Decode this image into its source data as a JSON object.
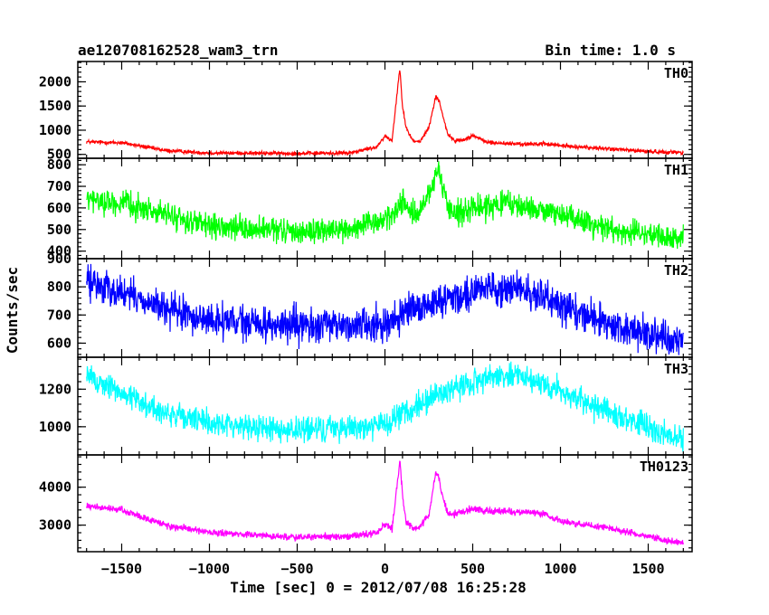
{
  "header": {
    "left_title": "ae120708162528_wam3_trn",
    "right_title": "Bin time: 1.0 s"
  },
  "chart_data": {
    "type": "line",
    "title": "ae120708162528_wam3_trn",
    "subtitle": "Bin time: 1.0 s",
    "xlabel": "Time [sec] 0 = 2012/07/08 16:25:28",
    "ylabel": "Counts/sec",
    "xlim": [
      -1750,
      1750
    ],
    "x_ticks": [
      -1500,
      -1000,
      -500,
      0,
      500,
      1000,
      1500
    ],
    "x_tick_labels": [
      "−1500",
      "−1000",
      "−500",
      "0",
      "500",
      "1000",
      "1500"
    ],
    "grid": false,
    "panels": [
      {
        "name": "TH0",
        "color": "#ff0000",
        "ylim": [
          420,
          2420
        ],
        "y_ticks": [
          500,
          1000,
          1500,
          2000
        ],
        "y_tick_labels": [
          "500",
          "1000",
          "1500",
          "2000"
        ],
        "noise": 20,
        "x": [
          -1700,
          -1500,
          -1250,
          -1000,
          -500,
          -200,
          -50,
          0,
          40,
          60,
          85,
          100,
          120,
          160,
          200,
          250,
          290,
          310,
          330,
          360,
          400,
          450,
          500,
          550,
          600,
          800,
          900,
          1000,
          1300,
          1500,
          1700
        ],
        "y": [
          760,
          740,
          580,
          530,
          520,
          530,
          650,
          880,
          780,
          1450,
          2300,
          1500,
          1050,
          780,
          760,
          1050,
          1700,
          1600,
          1300,
          900,
          780,
          800,
          900,
          800,
          740,
          710,
          720,
          680,
          610,
          560,
          540
        ]
      },
      {
        "name": "TH1",
        "color": "#00ff00",
        "ylim": [
          365,
          830
        ],
        "y_ticks": [
          400,
          500,
          600,
          700,
          800
        ],
        "y_tick_labels": [
          "400",
          "500",
          "600",
          "700",
          "800"
        ],
        "noise": 28,
        "x": [
          -1700,
          -1500,
          -1250,
          -1000,
          -500,
          -200,
          -50,
          50,
          100,
          150,
          200,
          260,
          300,
          330,
          360,
          400,
          500,
          700,
          1000,
          1300,
          1700
        ],
        "y": [
          640,
          620,
          570,
          510,
          490,
          500,
          530,
          570,
          640,
          570,
          580,
          680,
          770,
          680,
          600,
          580,
          600,
          620,
          570,
          500,
          450
        ]
      },
      {
        "name": "TH2",
        "color": "#0000ff",
        "ylim": [
          550,
          900
        ],
        "y_ticks": [
          600,
          700,
          800,
          900
        ],
        "y_tick_labels": [
          "600",
          "700",
          "800",
          "900"
        ],
        "noise": 30,
        "x": [
          -1700,
          -1500,
          -1250,
          -1000,
          -500,
          0,
          300,
          600,
          750,
          1000,
          1300,
          1700
        ],
        "y": [
          820,
          780,
          720,
          680,
          660,
          670,
          750,
          800,
          790,
          740,
          660,
          600
        ]
      },
      {
        "name": "TH3",
        "color": "#00ffff",
        "ylim": [
          850,
          1370
        ],
        "y_ticks": [
          1000,
          1200
        ],
        "y_tick_labels": [
          "1000",
          "1200"
        ],
        "noise": 34,
        "x": [
          -1700,
          -1500,
          -1250,
          -1000,
          -500,
          0,
          300,
          600,
          750,
          1000,
          1300,
          1700
        ],
        "y": [
          1270,
          1180,
          1070,
          1020,
          980,
          1010,
          1170,
          1270,
          1280,
          1190,
          1060,
          930
        ]
      },
      {
        "name": "TH0123",
        "color": "#ff00ff",
        "ylim": [
          2300,
          4850
        ],
        "y_ticks": [
          3000,
          4000
        ],
        "y_tick_labels": [
          "3000",
          "4000"
        ],
        "noise": 45,
        "x": [
          -1700,
          -1500,
          -1250,
          -1000,
          -500,
          -200,
          -50,
          0,
          40,
          60,
          85,
          100,
          120,
          160,
          200,
          250,
          290,
          310,
          330,
          360,
          400,
          500,
          600,
          800,
          900,
          1000,
          1300,
          1500,
          1700
        ],
        "y": [
          3500,
          3400,
          3000,
          2800,
          2680,
          2700,
          2800,
          3000,
          2900,
          3700,
          4700,
          3800,
          3100,
          2900,
          2950,
          3300,
          4400,
          4200,
          3700,
          3300,
          3300,
          3450,
          3350,
          3350,
          3300,
          3100,
          2900,
          2700,
          2520
        ]
      }
    ]
  }
}
